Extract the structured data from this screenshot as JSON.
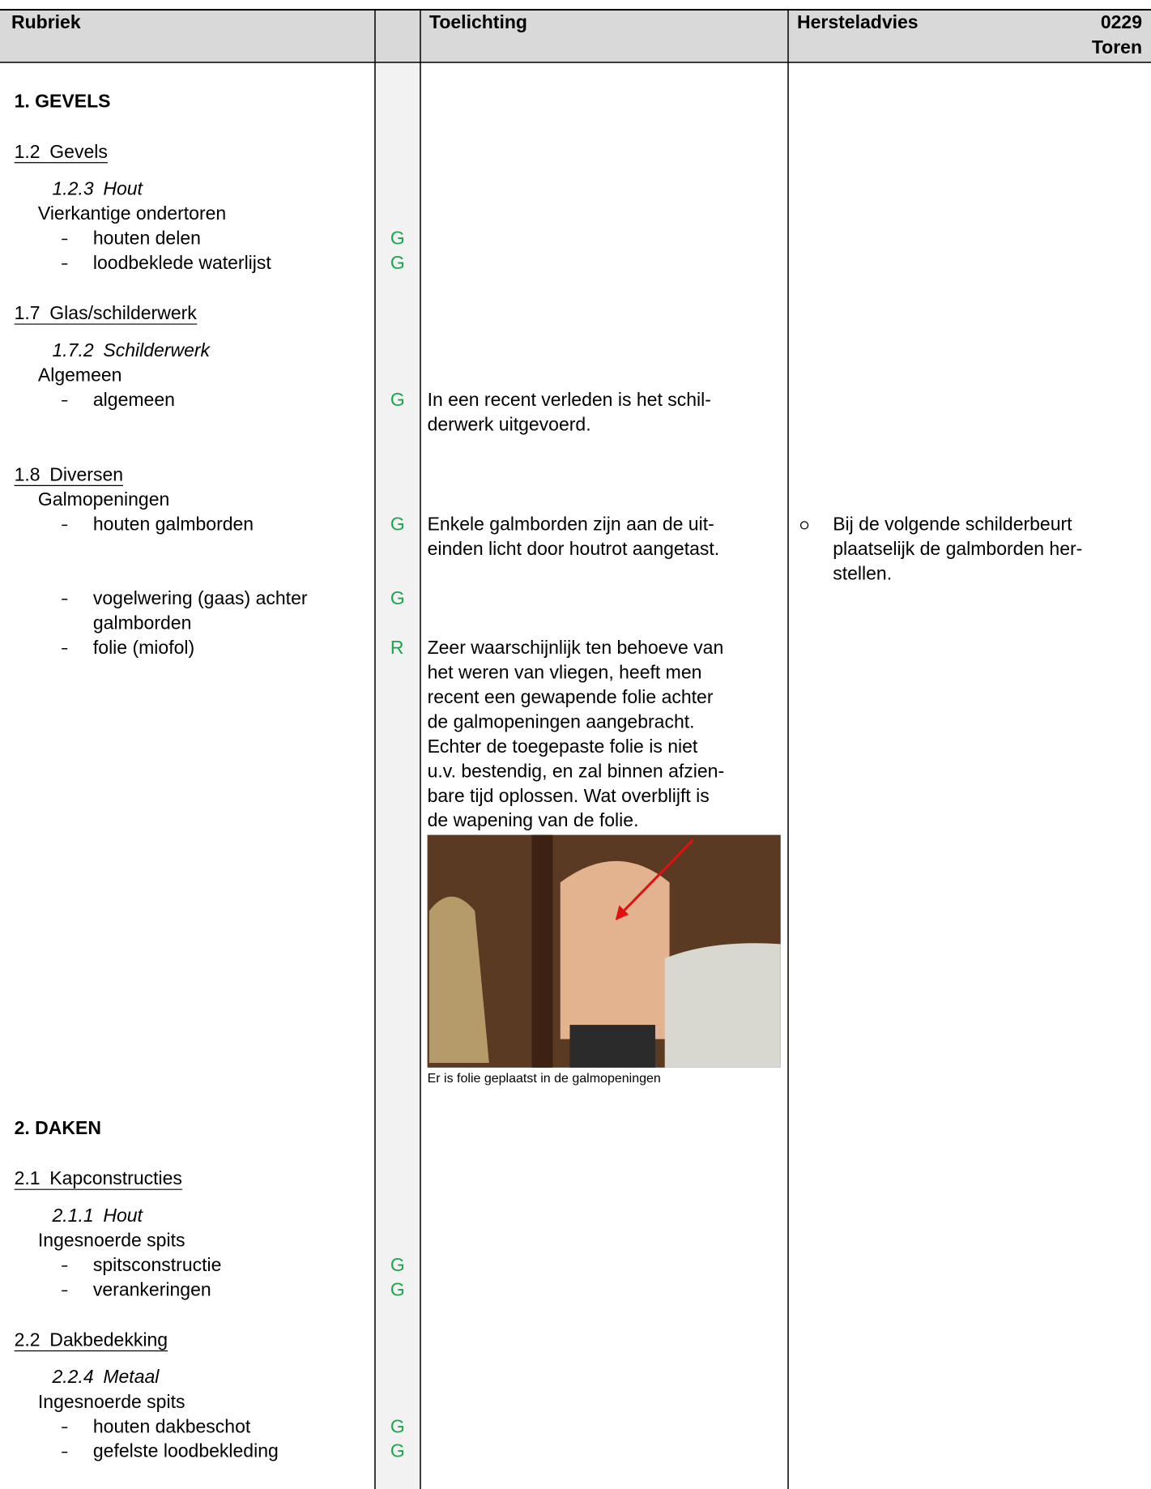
{
  "header": {
    "rubriek": "Rubriek",
    "toelichting": "Toelichting",
    "hersteladvies": "Hersteladvies",
    "code": "0229",
    "object": "Toren"
  },
  "sections": [
    {
      "title": "1. GEVELS",
      "subsections": [
        {
          "number": "1.2",
          "title": "Gevels",
          "topics": [
            {
              "number": "1.2.3",
              "title": "Hout",
              "groups": [
                {
                  "title": "Vierkantige ondertoren",
                  "items": [
                    {
                      "label": [
                        "houten delen"
                      ],
                      "rating": "G"
                    },
                    {
                      "label": [
                        "loodbeklede waterlijst"
                      ],
                      "rating": "G"
                    }
                  ]
                }
              ]
            }
          ]
        },
        {
          "number": "1.7",
          "title": "Glas/schilderwerk",
          "topics": [
            {
              "number": "1.7.2",
              "title": "Schilderwerk",
              "groups": [
                {
                  "title": "Algemeen",
                  "items": [
                    {
                      "label": [
                        "algemeen"
                      ],
                      "rating": "G",
                      "note": [
                        "In een recent verleden is het schil-",
                        "derwerk uitgevoerd."
                      ]
                    }
                  ]
                }
              ]
            }
          ]
        },
        {
          "number": "1.8",
          "title": "Diversen",
          "groups": [
            {
              "title": "Galmopeningen",
              "items": [
                {
                  "label": [
                    "houten galmborden"
                  ],
                  "rating": "G",
                  "note": [
                    "Enkele galmborden zijn aan de uit-",
                    "einden licht door houtrot aangetast."
                  ],
                  "advice": [
                    "Bij de volgende schilderbeurt",
                    "plaatselijk de galmborden her-",
                    "stellen."
                  ]
                },
                {
                  "label": [
                    "vogelwering (gaas) achter",
                    "galmborden"
                  ],
                  "rating": "G"
                },
                {
                  "label": [
                    "folie (miofol)"
                  ],
                  "rating": "R",
                  "note": [
                    "Zeer waarschijnlijk ten behoeve van",
                    "het weren van vliegen, heeft men",
                    "recent een gewapende folie achter",
                    "de galmopeningen aangebracht.",
                    "Echter de toegepaste folie is niet",
                    "u.v. bestendig, en zal binnen afzien-",
                    "bare tijd oplossen. Wat overblijft is",
                    "de wapening van de folie."
                  ],
                  "photo_caption": "Er is folie geplaatst in de galmopeningen"
                }
              ]
            }
          ]
        }
      ]
    },
    {
      "title": "2. DAKEN",
      "subsections": [
        {
          "number": "2.1",
          "title": "Kapconstructies",
          "topics": [
            {
              "number": "2.1.1",
              "title": "Hout",
              "groups": [
                {
                  "title": "Ingesnoerde spits",
                  "items": [
                    {
                      "label": [
                        "spitsconstructie"
                      ],
                      "rating": "G"
                    },
                    {
                      "label": [
                        "verankeringen"
                      ],
                      "rating": "G"
                    }
                  ]
                }
              ]
            }
          ]
        },
        {
          "number": "2.2",
          "title": "Dakbedekking",
          "topics": [
            {
              "number": "2.2.4",
              "title": "Metaal",
              "groups": [
                {
                  "title": "Ingesnoerde spits",
                  "items": [
                    {
                      "label": [
                        "houten dakbeschot"
                      ],
                      "rating": "G"
                    },
                    {
                      "label": [
                        "gefelste loodbekleding"
                      ],
                      "rating": "G"
                    }
                  ]
                }
              ]
            }
          ]
        }
      ]
    }
  ]
}
